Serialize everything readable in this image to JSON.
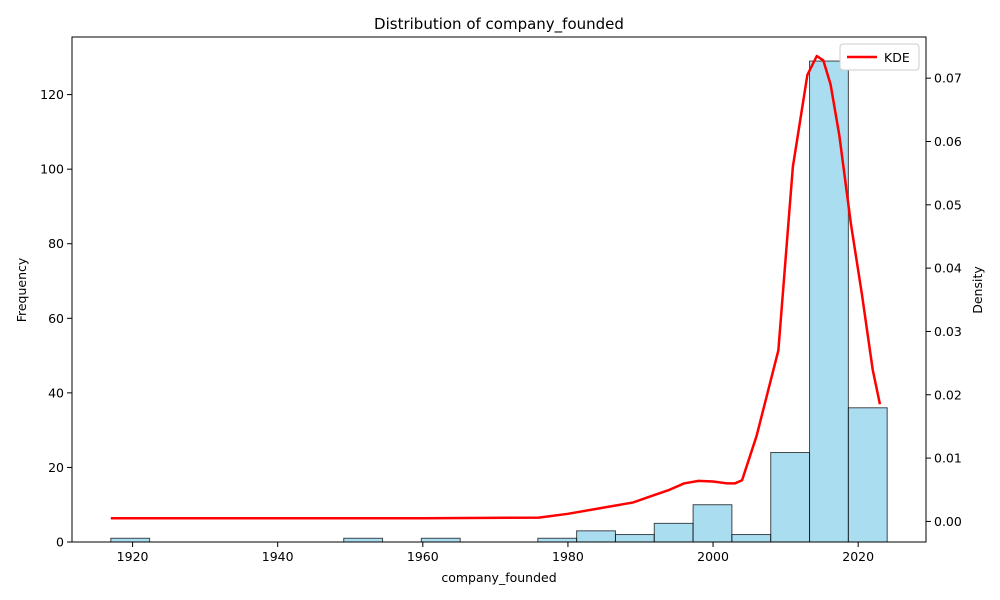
{
  "chart_data": {
    "type": "bar",
    "title": "Distribution of company_founded",
    "xlabel": "company_founded",
    "ylabel": "Frequency",
    "y2label": "Density",
    "xlim": [
      1911.65,
      2029.35
    ],
    "ylim": [
      0,
      135.45
    ],
    "y2lim": [
      -0.00325,
      0.0765
    ],
    "x_ticks": [
      1920,
      1940,
      1960,
      1980,
      2000,
      2020
    ],
    "y_ticks": [
      0,
      20,
      40,
      60,
      80,
      100,
      120
    ],
    "y2_ticks": [
      0.0,
      0.01,
      0.02,
      0.03,
      0.04,
      0.05,
      0.06,
      0.07
    ],
    "y2_tick_labels": [
      "0.00",
      "0.01",
      "0.02",
      "0.03",
      "0.04",
      "0.05",
      "0.06",
      "0.07"
    ],
    "bar_color": "#87ceeb",
    "bar_edge_color": "#000000",
    "bins": [
      {
        "x0": 1917.0,
        "x1": 1922.35,
        "count": 1
      },
      {
        "x0": 1922.35,
        "x1": 1927.7,
        "count": 0
      },
      {
        "x0": 1927.7,
        "x1": 1933.05,
        "count": 0
      },
      {
        "x0": 1933.05,
        "x1": 1938.4,
        "count": 0
      },
      {
        "x0": 1938.4,
        "x1": 1943.75,
        "count": 0
      },
      {
        "x0": 1943.75,
        "x1": 1949.1,
        "count": 0
      },
      {
        "x0": 1949.1,
        "x1": 1954.45,
        "count": 1
      },
      {
        "x0": 1954.45,
        "x1": 1959.8,
        "count": 0
      },
      {
        "x0": 1959.8,
        "x1": 1965.15,
        "count": 1
      },
      {
        "x0": 1965.15,
        "x1": 1970.5,
        "count": 0
      },
      {
        "x0": 1970.5,
        "x1": 1975.85,
        "count": 0
      },
      {
        "x0": 1975.85,
        "x1": 1981.2,
        "count": 1
      },
      {
        "x0": 1981.2,
        "x1": 1986.55,
        "count": 3
      },
      {
        "x0": 1986.55,
        "x1": 1991.9,
        "count": 2
      },
      {
        "x0": 1991.9,
        "x1": 1997.25,
        "count": 5
      },
      {
        "x0": 1997.25,
        "x1": 2002.6,
        "count": 10
      },
      {
        "x0": 2002.6,
        "x1": 2007.95,
        "count": 2
      },
      {
        "x0": 2007.95,
        "x1": 2013.3,
        "count": 24
      },
      {
        "x0": 2013.3,
        "x1": 2018.65,
        "count": 129
      },
      {
        "x0": 2018.65,
        "x1": 2024.0,
        "count": 36
      }
    ],
    "series": [
      {
        "name": "KDE",
        "color": "#ff0000",
        "axis": "right",
        "points": [
          [
            1917,
            0.0005
          ],
          [
            1930,
            0.0005
          ],
          [
            1950,
            0.0005
          ],
          [
            1960,
            0.0005
          ],
          [
            1976,
            0.0006
          ],
          [
            1980,
            0.0012
          ],
          [
            1985,
            0.0022
          ],
          [
            1989,
            0.003
          ],
          [
            1991,
            0.0038
          ],
          [
            1994,
            0.005
          ],
          [
            1996,
            0.006
          ],
          [
            1998,
            0.0064
          ],
          [
            2000,
            0.0063
          ],
          [
            2002,
            0.006
          ],
          [
            2003,
            0.006
          ],
          [
            2004,
            0.0065
          ],
          [
            2006,
            0.0135
          ],
          [
            2009,
            0.027
          ],
          [
            2011,
            0.056
          ],
          [
            2013,
            0.0705
          ],
          [
            2014.3,
            0.0735
          ],
          [
            2015.2,
            0.0728
          ],
          [
            2016.2,
            0.069
          ],
          [
            2017.4,
            0.061
          ],
          [
            2019,
            0.047
          ],
          [
            2020.5,
            0.036
          ],
          [
            2022,
            0.024
          ],
          [
            2023,
            0.0185
          ]
        ]
      }
    ],
    "legend": {
      "placement": "top-right",
      "label": "KDE"
    },
    "grid": false
  }
}
